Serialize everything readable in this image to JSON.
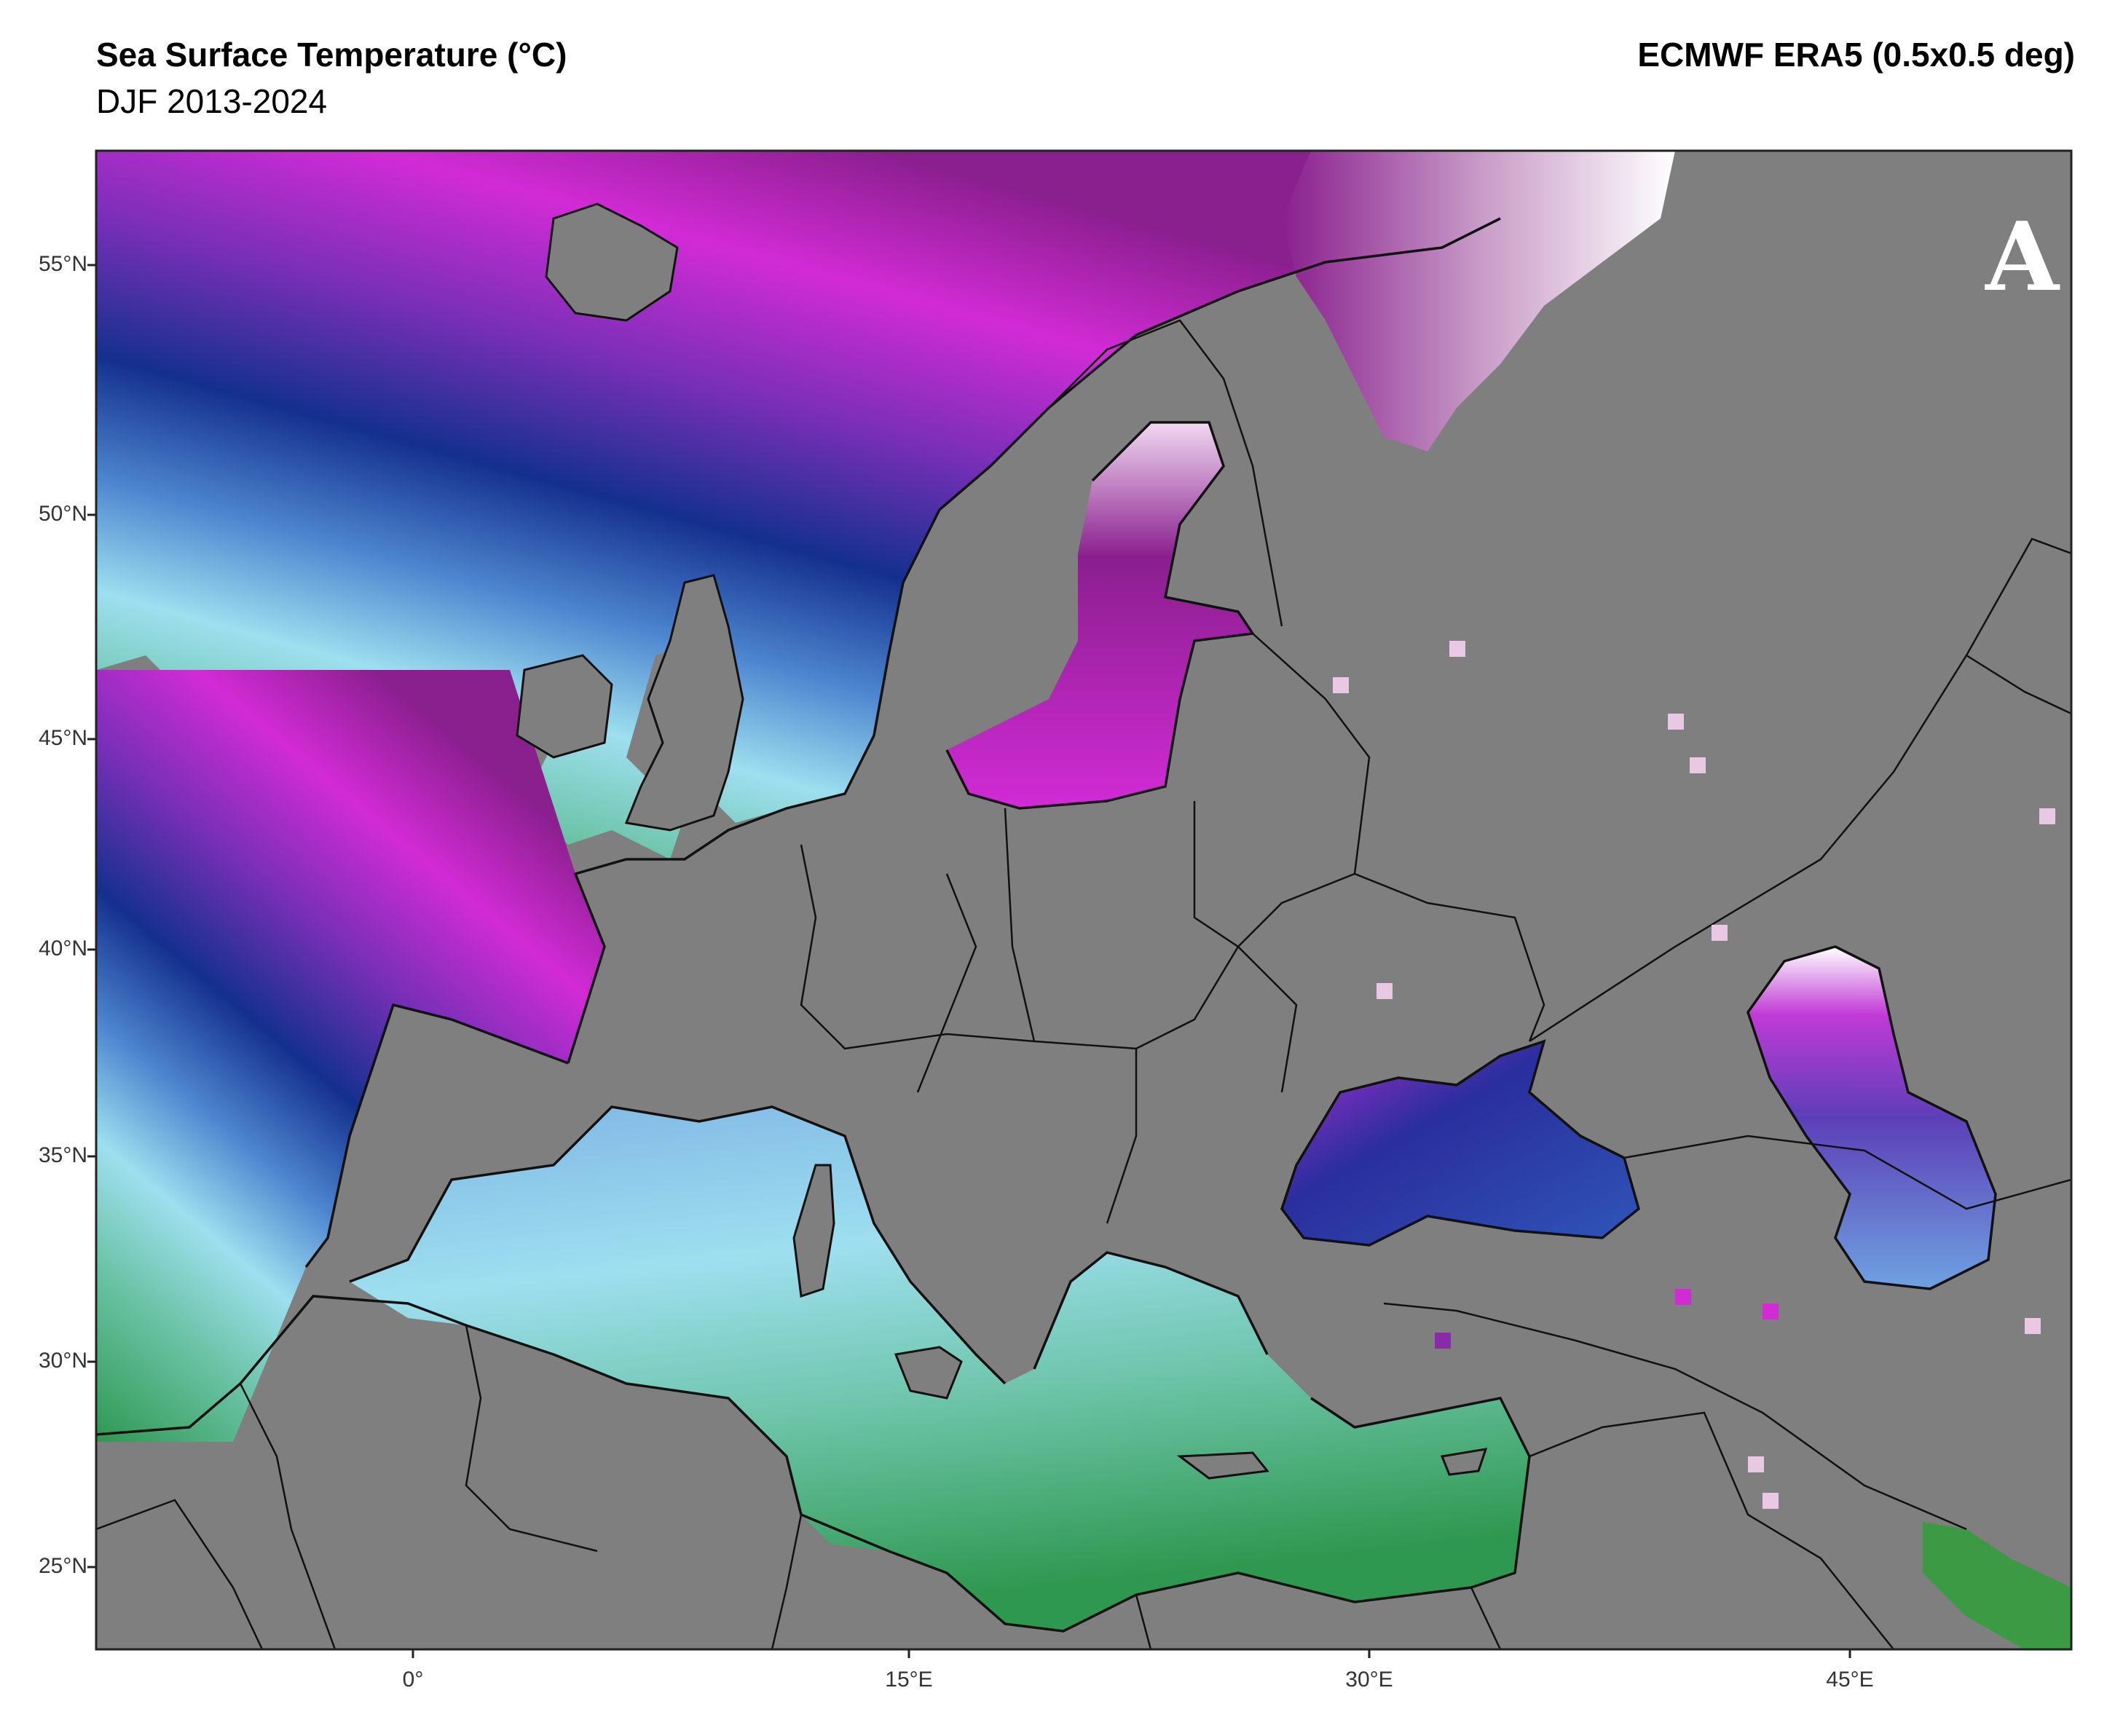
{
  "header": {
    "title": "Sea Surface Temperature (°C)",
    "subtitle": "DJF 2013-2024",
    "source": "ECMWF ERA5 (0.5x0.5 deg)"
  },
  "panel_label": "A",
  "axes": {
    "lat_ticks": [
      "55°N",
      "50°N",
      "45°N",
      "40°N",
      "35°N",
      "30°N",
      "25°N"
    ],
    "lon_ticks": [
      "0°",
      "15°E",
      "30°E",
      "45°E"
    ]
  },
  "colors": {
    "land": "#7f7f7f",
    "coast": "#111111",
    "sst_cold_pink": "#e9c8e4",
    "sst_purple": "#8a2aa8",
    "sst_magenta": "#d22bd6",
    "sst_navy": "#14308e",
    "sst_blue": "#4d86cf",
    "sst_lightblue": "#9edfef",
    "sst_teal": "#6cc4a8",
    "sst_green": "#2f9850"
  }
}
